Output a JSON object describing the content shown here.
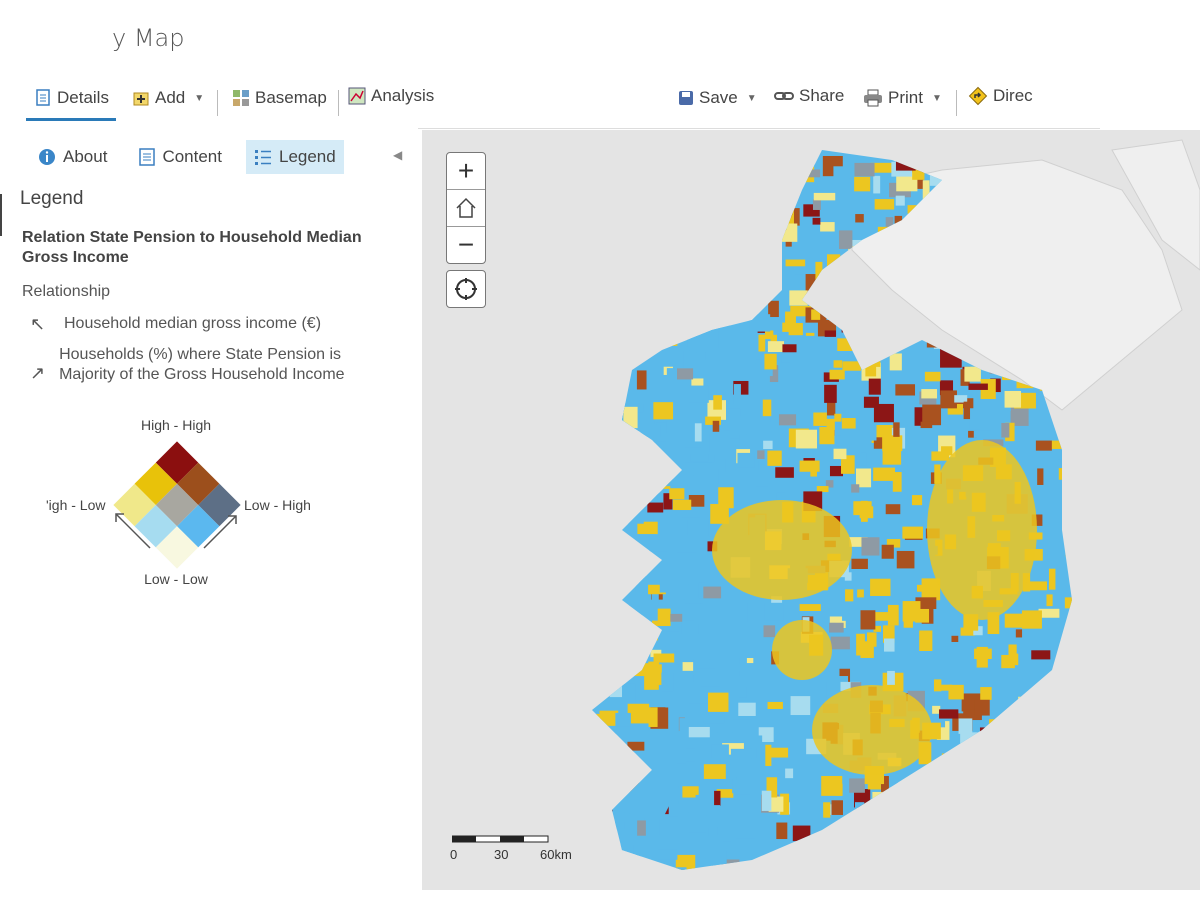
{
  "app": {
    "title": "y Map"
  },
  "toolbar": {
    "details": "Details",
    "add": "Add",
    "basemap": "Basemap",
    "analysis": "Analysis",
    "save": "Save",
    "share": "Share",
    "print": "Print",
    "directions": "Direc"
  },
  "panel": {
    "tabs": {
      "about": "About",
      "content": "Content",
      "legend": "Legend"
    },
    "legend_heading": "Legend",
    "layer_title": "Relation State Pension to Household Median Gross Income",
    "relationship_label": "Relationship",
    "var1_label": "Household median gross income (€)",
    "var2_label": "Households (%) where State Pension is Majority of the Gross Household Income",
    "diagram": {
      "top": "High - High",
      "left": "'igh - Low",
      "right": "Low - High",
      "bottom": "Low - Low",
      "colors": [
        "#8b0f0f",
        "#9c4f1c",
        "#5d6f86",
        "#e8c20a",
        "#a8a7a0",
        "#5bb8ef",
        "#f0e88a",
        "#a6dcf0",
        "#f8f8e0"
      ]
    }
  },
  "map": {
    "zoom_in": "+",
    "zoom_out": "−",
    "scale": {
      "t0": "0",
      "t1": "30",
      "t2": "60km"
    },
    "colors": {
      "yellow": "#ecc620",
      "blue": "#5ab9ea",
      "brown": "#a9521f",
      "darkred": "#8c1616",
      "grey": "#8e9aa4",
      "lightyellow": "#f2e88c",
      "lightblue": "#a7dcef"
    }
  }
}
